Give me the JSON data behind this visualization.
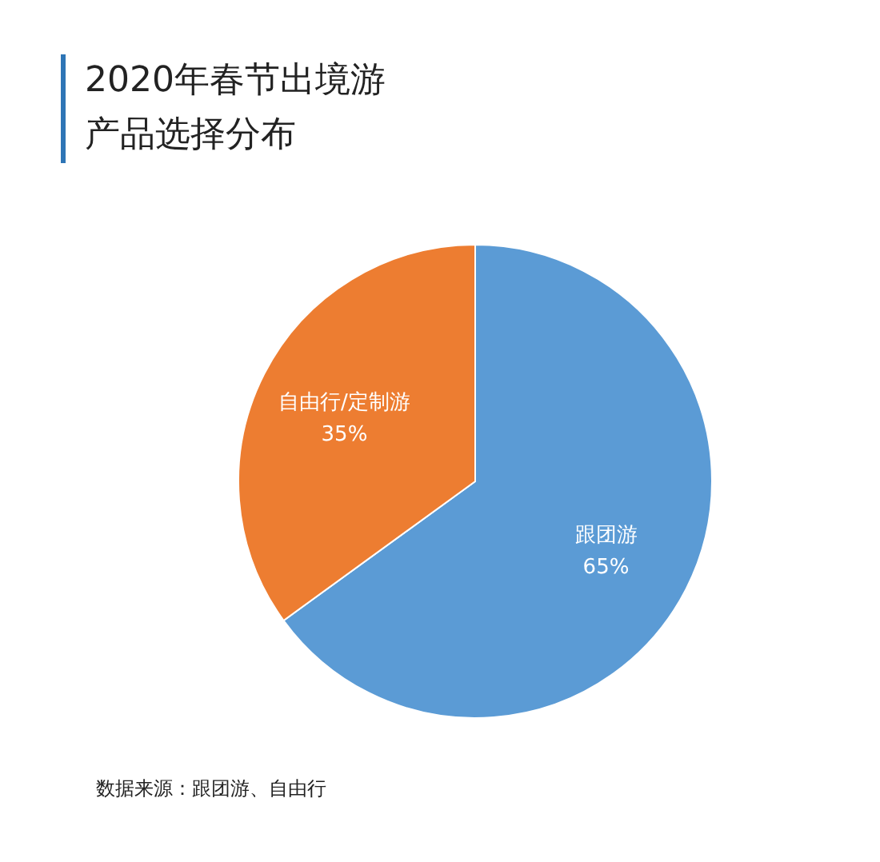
{
  "chart_data": {
    "type": "pie",
    "title": "2020年春节出境游产品选择分布",
    "categories": [
      "跟团游",
      "自由行/定制游"
    ],
    "values": [
      65,
      35
    ],
    "colors": [
      "#5b9bd5",
      "#ed7d31"
    ],
    "value_labels": [
      "65%",
      "35%"
    ],
    "annotations": [
      "数据来源：跟团游、自由行"
    ]
  }
}
